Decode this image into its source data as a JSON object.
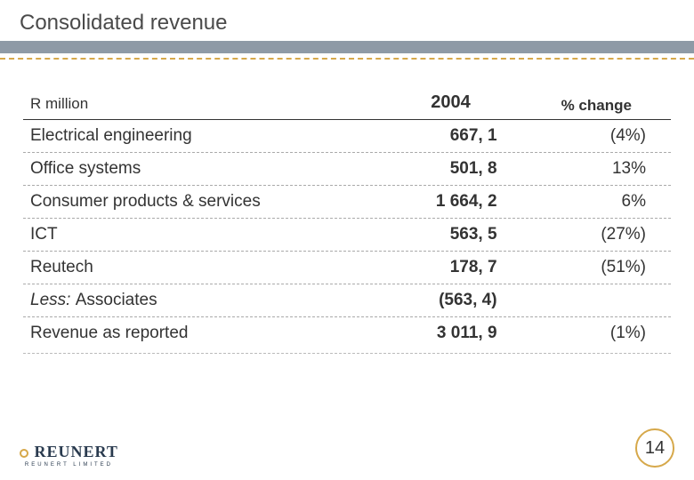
{
  "title": "Consolidated revenue",
  "accent_color": "#d6a84a",
  "band_color": "#8e9aa6",
  "table": {
    "header": {
      "col1": "R million",
      "col2": "2004",
      "col3": "% change"
    },
    "rows": [
      {
        "label": "Electrical engineering",
        "v2004": "667, 1",
        "pct": "(4%)",
        "italic": false
      },
      {
        "label": "Office systems",
        "v2004": "501, 8",
        "pct": "13%",
        "italic": false
      },
      {
        "label": "Consumer products & services",
        "v2004": "1 664, 2",
        "pct": "6%",
        "italic": false
      },
      {
        "label": "ICT",
        "v2004": "563, 5",
        "pct": "(27%)",
        "italic": false
      },
      {
        "label": "Reutech",
        "v2004": "178, 7",
        "pct": "(51%)",
        "italic": false
      },
      {
        "label": "Less: Associates",
        "v2004": "(563, 4)",
        "pct": "",
        "italic": true
      },
      {
        "label": "Revenue as reported",
        "v2004": "3 011, 9",
        "pct": "(1%)",
        "italic": false
      }
    ]
  },
  "logo": {
    "name": "REUNERT",
    "sub": "REUNERT LIMITED"
  },
  "page_number": "14"
}
